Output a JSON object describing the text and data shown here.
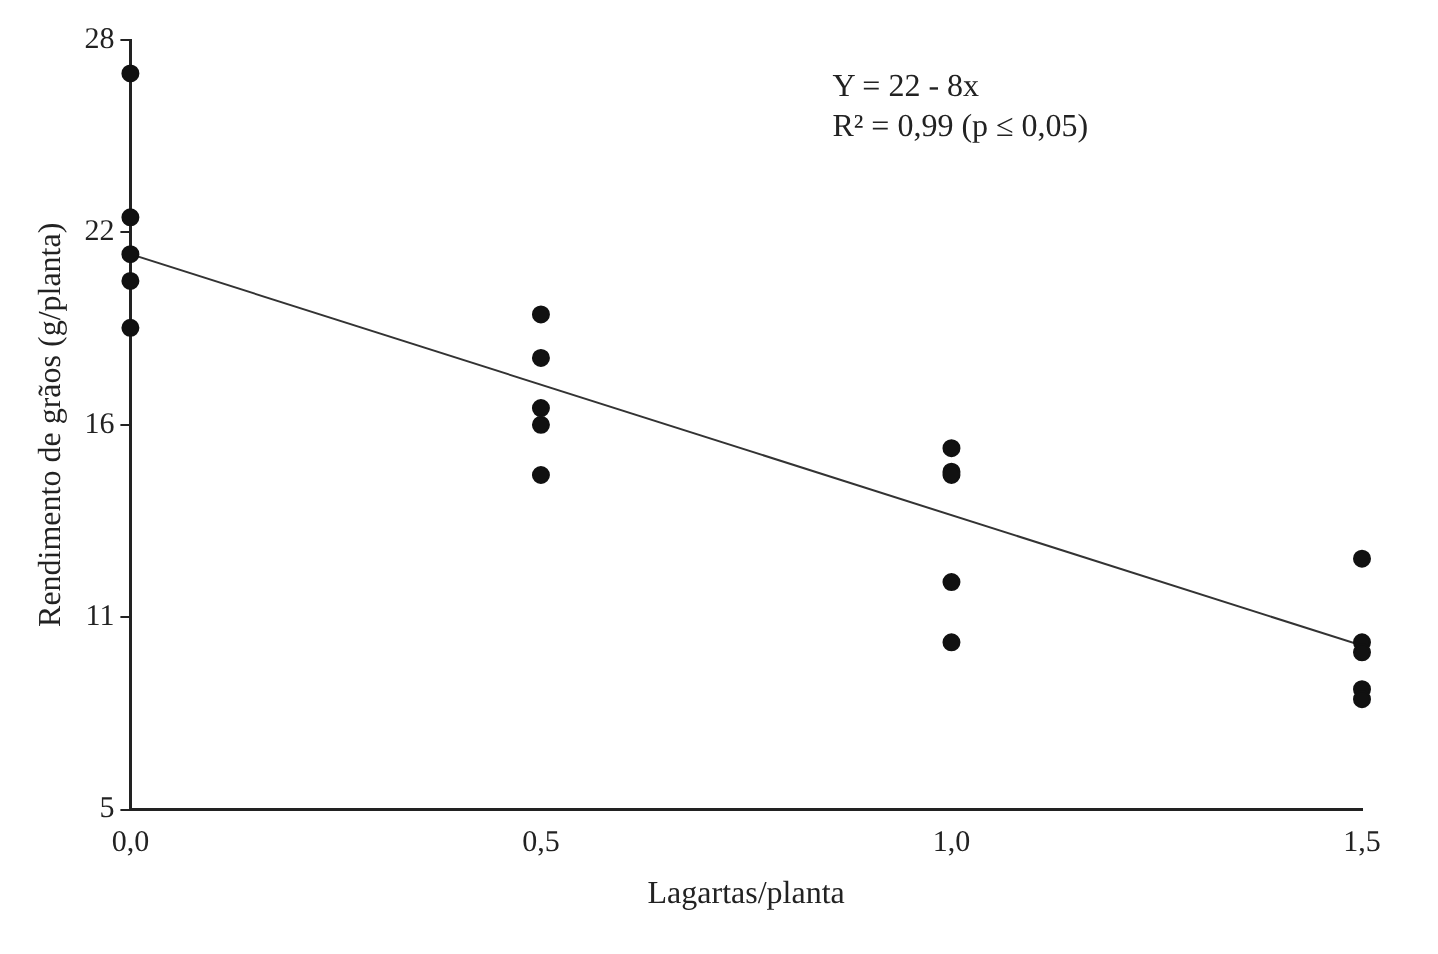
{
  "chart_data": {
    "type": "scatter",
    "xlabel": "Lagartas/planta",
    "ylabel": "Rendimento de grãos (g/planta)",
    "annotations": [
      "Y = 22 - 8x",
      "R² = 0,99 (p ≤ 0,05)"
    ],
    "xlim": [
      0,
      1.5
    ],
    "xticks": [
      {
        "value": 0,
        "label": "0,0"
      },
      {
        "value": 0.5,
        "label": "0,5"
      },
      {
        "value": 1,
        "label": "1,0"
      },
      {
        "value": 1.5,
        "label": "1,5"
      }
    ],
    "ylim": [
      5,
      28
    ],
    "yticks": [
      5,
      {
        "value": 10.75,
        "label": "11"
      },
      {
        "value": 16.5,
        "label": "16"
      },
      {
        "value": 22.25,
        "label": "22"
      },
      28
    ],
    "grid": false,
    "legend": false,
    "marker": "circle",
    "series": [
      {
        "color": "#111111",
        "x": [
          0,
          0,
          0,
          0,
          0,
          0.5,
          0.5,
          0.5,
          0.5,
          0.5,
          1,
          1,
          1,
          1,
          1,
          1.5,
          1.5,
          1.5,
          1.5,
          1.5
        ],
        "values": [
          27.0,
          22.7,
          21.6,
          20.8,
          19.4,
          19.8,
          18.5,
          17.0,
          16.5,
          15.0,
          15.8,
          15.1,
          15.0,
          11.8,
          10.0,
          12.5,
          10.0,
          9.7,
          8.6,
          8.3
        ]
      },
      {
        "type": "line",
        "color": "#333333",
        "marker": "none",
        "line_style": "solid",
        "x": [
          0,
          1.5
        ],
        "values": [
          21.6,
          9.9
        ]
      }
    ]
  }
}
